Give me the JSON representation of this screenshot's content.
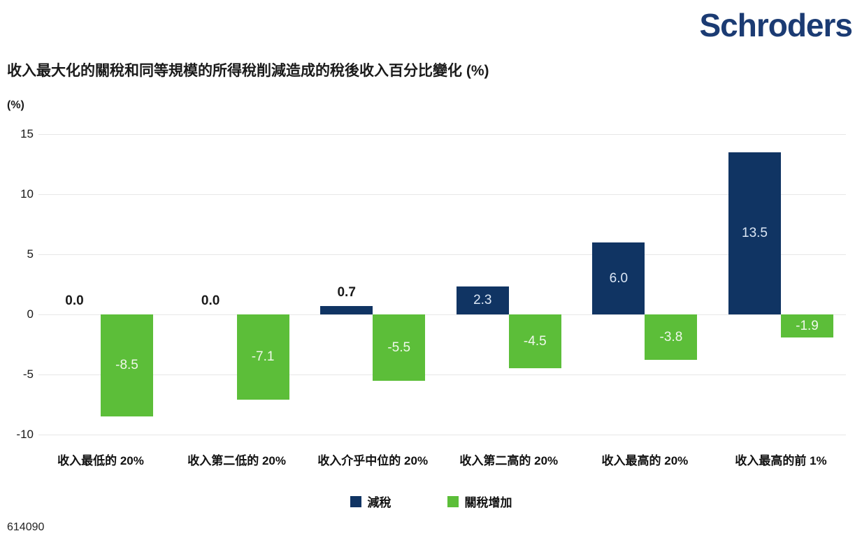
{
  "logo": {
    "text": "Schroders",
    "color": "#1b3b73"
  },
  "title": "收入最大化的關稅和同等規模的所得稅削減造成的稅後收入百分比變化 (%)",
  "axis_unit": "(%)",
  "footer_code": "614090",
  "colors": {
    "navy": "#103463",
    "green": "#5cbe39",
    "gridline": "#e7e7e7",
    "label_on_navy": "#dce7f5",
    "label_on_green": "#f0f8ec"
  },
  "legend": [
    {
      "label": "減稅",
      "color_key": "navy"
    },
    {
      "label": "關稅增加",
      "color_key": "green"
    }
  ],
  "chart_data": {
    "type": "bar",
    "title": "收入最大化的關稅和同等規模的所得稅削減造成的稅後收入百分比變化 (%)",
    "ylabel": "(%)",
    "categories": [
      "收入最低的 20%",
      "收入第二低的 20%",
      "收入介乎中位的 20%",
      "收入第二高的 20%",
      "收入最高的 20%",
      "收入最高的前 1%"
    ],
    "series": [
      {
        "name": "減稅",
        "color_key": "navy",
        "values": [
          0.0,
          0.0,
          0.7,
          2.3,
          6.0,
          13.5
        ],
        "labels": [
          "0.0",
          "0.0",
          "0.7",
          "2.3",
          "6.0",
          "13.5"
        ]
      },
      {
        "name": "關稅增加",
        "color_key": "green",
        "values": [
          -8.5,
          -7.1,
          -5.5,
          -4.5,
          -3.8,
          -1.9
        ],
        "labels": [
          "-8.5",
          "-7.1",
          "-5.5",
          "-4.5",
          "-3.8",
          "-1.9"
        ]
      }
    ],
    "yticks": [
      15,
      10,
      5,
      0,
      -5,
      -10
    ],
    "ylim": [
      -10,
      15
    ],
    "grid": true,
    "legend_position": "bottom"
  }
}
